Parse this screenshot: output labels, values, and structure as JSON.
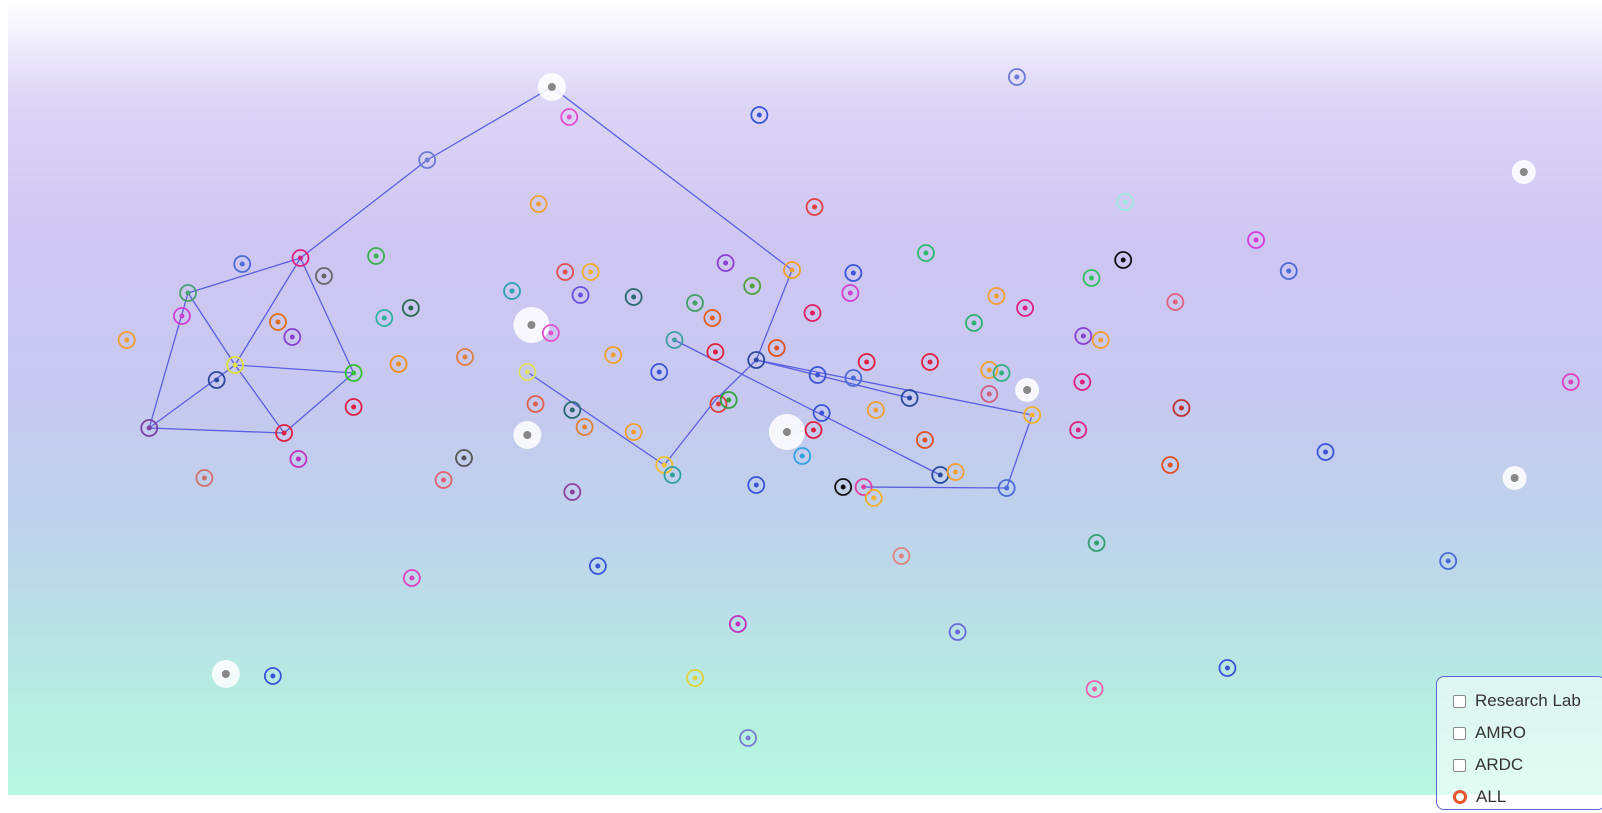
{
  "filters": {
    "options": [
      "Research Lab",
      "AMRO",
      "ARDC"
    ],
    "all": "ALL"
  }
}
